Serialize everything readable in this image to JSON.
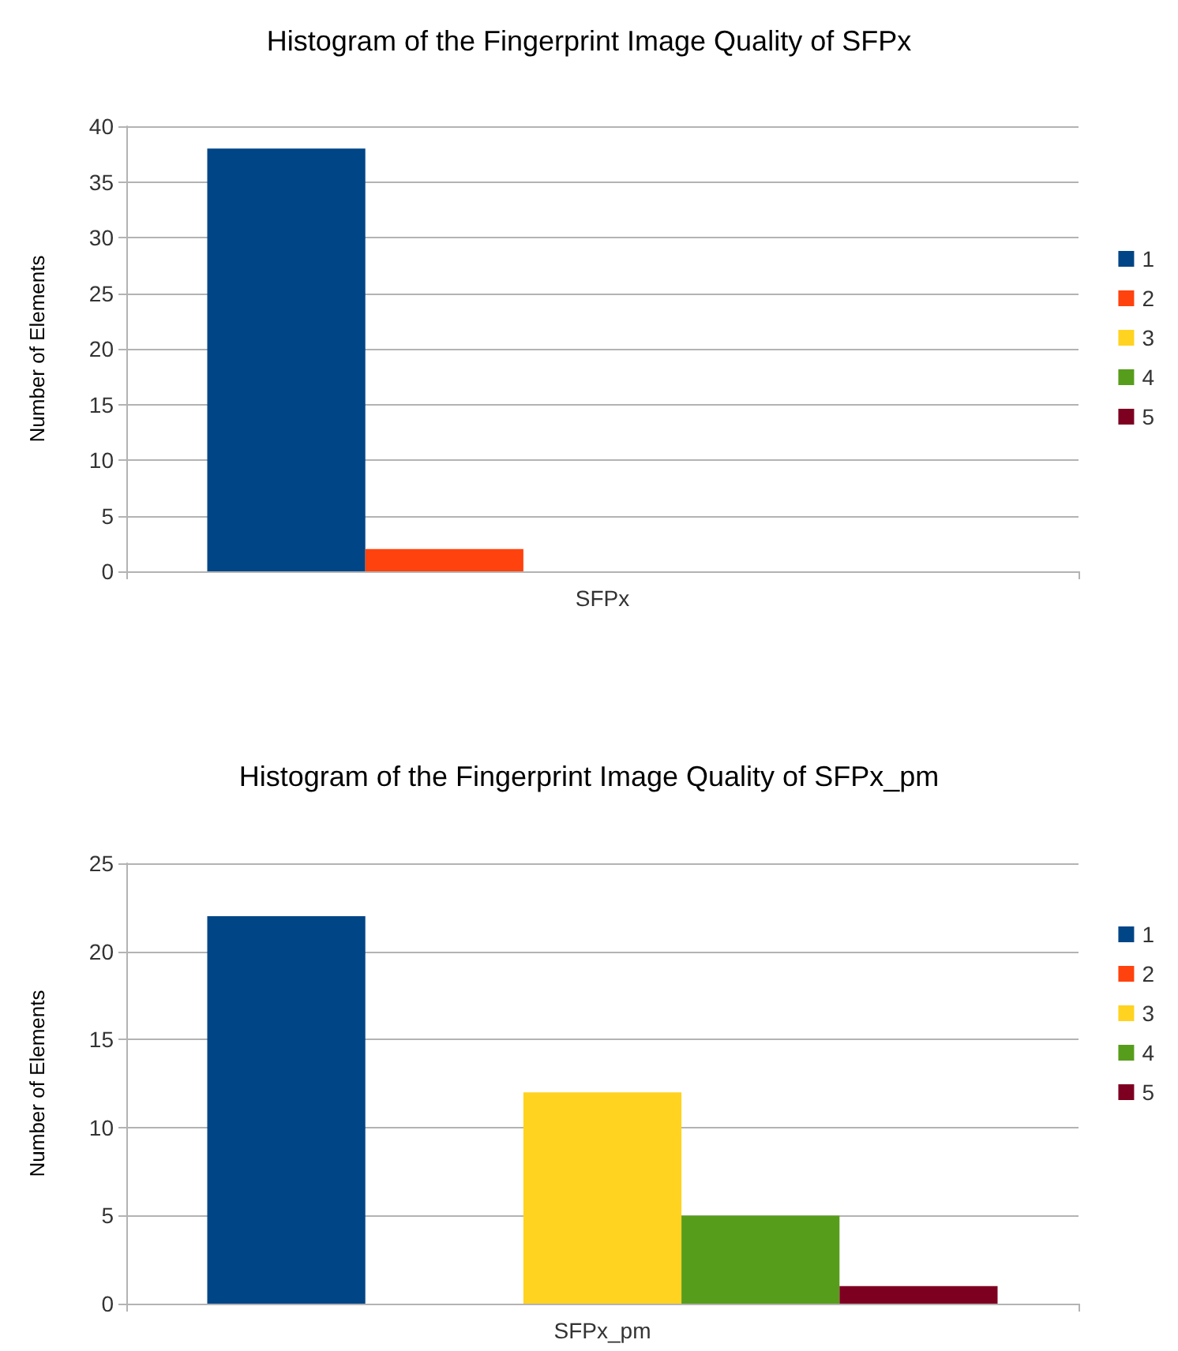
{
  "chart_data": [
    {
      "type": "bar",
      "title": "Histogram of the Fingerprint Image Quality of SFPx",
      "ylabel": "Number of Elements",
      "categories": [
        "SFPx"
      ],
      "series": [
        {
          "name": "1",
          "color": "#004586",
          "values": [
            38
          ]
        },
        {
          "name": "2",
          "color": "#ff420e",
          "values": [
            2
          ]
        },
        {
          "name": "3",
          "color": "#ffd320",
          "values": [
            0
          ]
        },
        {
          "name": "4",
          "color": "#579d1c",
          "values": [
            0
          ]
        },
        {
          "name": "5",
          "color": "#7e0021",
          "values": [
            0
          ]
        }
      ],
      "ylim": [
        0,
        40
      ],
      "yticks": [
        0,
        5,
        10,
        15,
        20,
        25,
        30,
        35,
        40
      ],
      "grid": "y",
      "legend": "right"
    },
    {
      "type": "bar",
      "title": "Histogram of the Fingerprint Image Quality of SFPx_pm",
      "ylabel": "Number of Elements",
      "categories": [
        "SFPx_pm"
      ],
      "series": [
        {
          "name": "1",
          "color": "#004586",
          "values": [
            22
          ]
        },
        {
          "name": "2",
          "color": "#ff420e",
          "values": [
            0
          ]
        },
        {
          "name": "3",
          "color": "#ffd320",
          "values": [
            12
          ]
        },
        {
          "name": "4",
          "color": "#579d1c",
          "values": [
            5
          ]
        },
        {
          "name": "5",
          "color": "#7e0021",
          "values": [
            1
          ]
        }
      ],
      "ylim": [
        0,
        25
      ],
      "yticks": [
        0,
        5,
        10,
        15,
        20,
        25
      ],
      "grid": "y",
      "legend": "right"
    }
  ]
}
